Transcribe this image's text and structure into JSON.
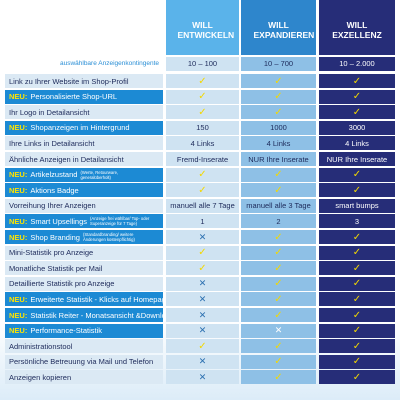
{
  "columns": [
    "WILL ENTWICKELN",
    "WILL EXPANDIEREN",
    "WILL EXZELLENZ"
  ],
  "quota": {
    "label": "auswählbare Anzeigenkontingente",
    "values": [
      "10 – 100",
      "10 – 700",
      "10 – 2.000"
    ]
  },
  "rows": [
    {
      "label": "Link zu Ihrer Website im Shop-Profil",
      "cells": [
        "✓",
        "✓",
        "✓"
      ]
    },
    {
      "prefix": "NEU:",
      "label": "Personalisierte Shop-URL",
      "cells": [
        "✓",
        "✓",
        "✓"
      ]
    },
    {
      "label": "Ihr Logo in Detailansicht",
      "cells": [
        "✓",
        "✓",
        "✓"
      ]
    },
    {
      "prefix": "NEU:",
      "label": "Shopanzeigen im Hintergrund",
      "cells": [
        "150",
        "1000",
        "3000"
      ]
    },
    {
      "label": "Ihre Links in Detailansicht",
      "cells": [
        "4 Links",
        "4 Links",
        "4 Links"
      ]
    },
    {
      "label": "Ähnliche Anzeigen in Detailansicht",
      "cells": [
        "Fremd-Inserate",
        "NUR Ihre Inserate",
        "NUR Ihre Inserate"
      ]
    },
    {
      "prefix": "NEU:",
      "label": "Artikelzustand",
      "note": "(Werte, Retourware, generalüberholt)",
      "cells": [
        "✓",
        "✓",
        "✓"
      ]
    },
    {
      "prefix": "NEU:",
      "label": "Aktions Badge",
      "cells": [
        "✓",
        "✓",
        "✓"
      ]
    },
    {
      "label": "Vorreihung Ihrer Anzeigen",
      "cells": [
        "manuell alle 7 Tage",
        "manuell alle 3 Tage",
        "smart bumps"
      ]
    },
    {
      "prefix": "NEU:",
      "label": "Smart Upsellings",
      "note": "(Anzeige frei wählbar/ Top- oder Superanzeige für 7 Tage)",
      "cells": [
        "1",
        "2",
        "3"
      ]
    },
    {
      "prefix": "NEU:",
      "label": "Shop Branding",
      "note": "(Standardbranding/ weitere Änderungen kostenpflichtig)",
      "cells": [
        "✕",
        "✓",
        "✓"
      ]
    },
    {
      "label": "Mini-Statistik pro Anzeige",
      "cells": [
        "✓",
        "✓",
        "✓"
      ]
    },
    {
      "label": "Monatliche Statistik per Mail",
      "cells": [
        "✓",
        "✓",
        "✓"
      ]
    },
    {
      "label": "Detaillierte Statistik pro Anzeige",
      "cells": [
        "✕",
        "✓",
        "✓"
      ]
    },
    {
      "prefix": "NEU:",
      "label": "Erweiterte Statistik - Klicks auf Homepage & Links",
      "cells": [
        "✕",
        "✓",
        "✓"
      ]
    },
    {
      "prefix": "NEU:",
      "label": "Statistik Reiter - Monatsansicht &Download",
      "cells": [
        "✕",
        "✓",
        "✓"
      ]
    },
    {
      "prefix": "NEU:",
      "label": "Performance-Statistik",
      "cells": [
        "✕",
        "✕",
        "✓"
      ]
    },
    {
      "label": "Administrationstool",
      "cells": [
        "✓",
        "✓",
        "✓"
      ]
    },
    {
      "label": "Persönliche Betreuung via Mail und Telefon",
      "cells": [
        "✕",
        "✓",
        "✓"
      ]
    },
    {
      "label": "Anzeigen kopieren",
      "cells": [
        "✕",
        "✓",
        "✓"
      ]
    }
  ]
}
